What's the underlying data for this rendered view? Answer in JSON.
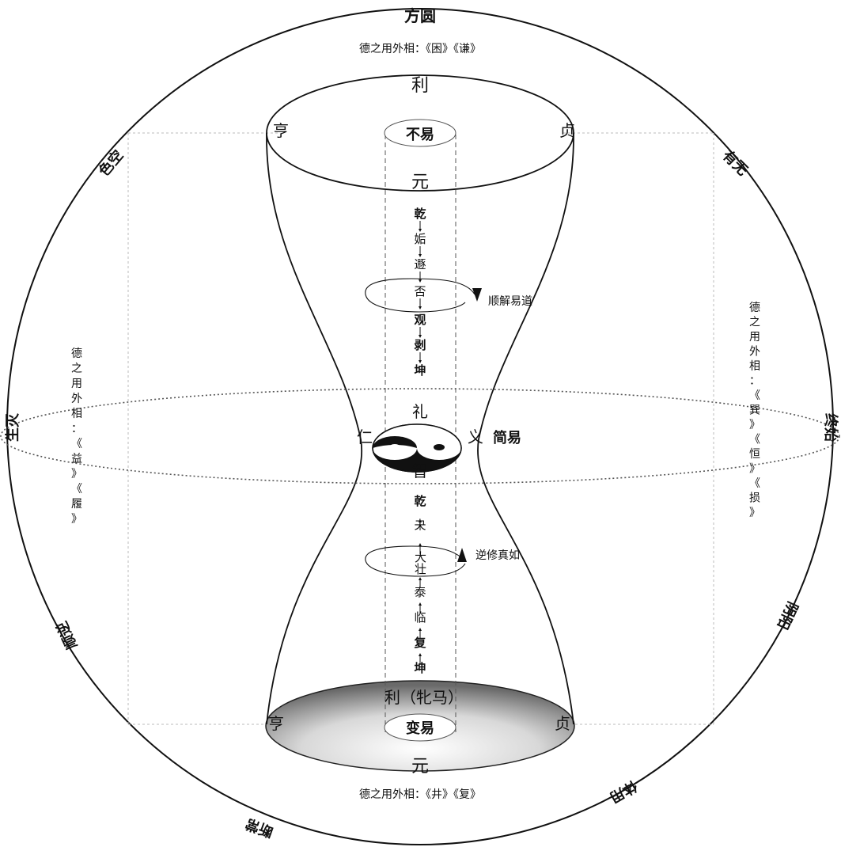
{
  "outer": {
    "top": "方圆",
    "upper_left": "色空",
    "left": "生灭",
    "lower_left": "顺逆",
    "bottom_left": "断常",
    "upper_right": "有无",
    "right": "终始",
    "lower_right": "阴阳",
    "bottom_right": "体用"
  },
  "de": {
    "top": "德之用外相：《困》《谦》",
    "bottom": "德之用外相：《井》《复》",
    "left": [
      "德",
      "之",
      "用",
      "外",
      "相",
      "：",
      "《",
      "益",
      "》",
      "《",
      "履",
      "》"
    ],
    "right": [
      "德",
      "之",
      "用",
      "外",
      "相",
      "：",
      "《",
      "巽",
      "》",
      "《",
      "恒",
      "》",
      "《",
      "损",
      "》"
    ]
  },
  "upper": {
    "top": "利",
    "left": "亨",
    "right": "贞",
    "center": "不易",
    "bottom": "元",
    "chain": [
      "乾",
      "姤",
      "遯",
      "否",
      "观",
      "剥",
      "坤"
    ],
    "loop_label": "顺解易道"
  },
  "middle": {
    "top": "礼",
    "left": "仁",
    "right": "义",
    "bottom": "智",
    "label": "简易"
  },
  "lower": {
    "chain": [
      "乾",
      "夬",
      "大壮",
      "泰",
      "临",
      "复",
      "坤"
    ],
    "loop_label": "逆修真如",
    "top": "利（牝马）",
    "left": "亨",
    "right": "贞",
    "center": "变易",
    "bottom": "元"
  }
}
